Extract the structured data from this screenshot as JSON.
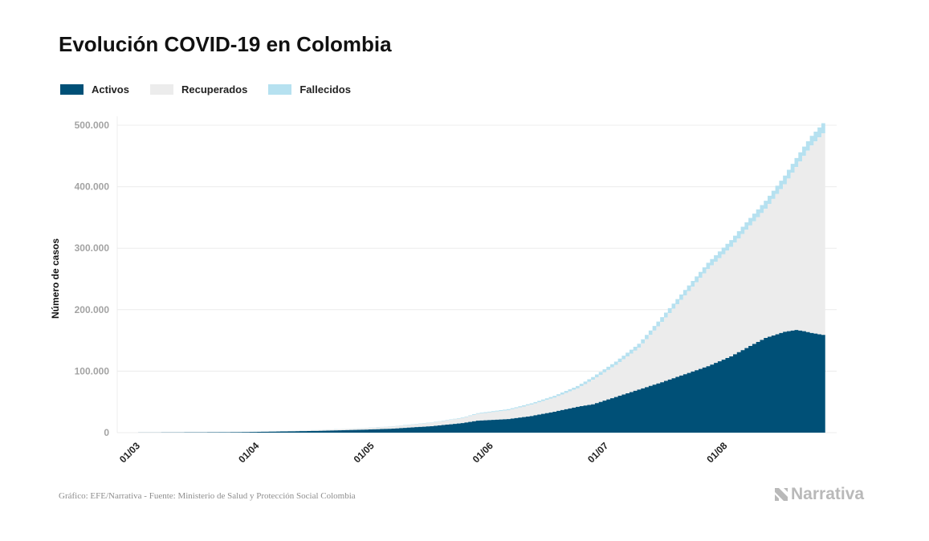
{
  "chart_data": {
    "type": "area",
    "title": "Evolución COVID-19 en Colombia",
    "ylabel": "Número de casos",
    "xlabel": "",
    "ylim": [
      0,
      500000
    ],
    "yticks": [
      0,
      100000,
      200000,
      300000,
      400000,
      500000
    ],
    "ytick_labels": [
      "0",
      "100.000",
      "200.000",
      "300.000",
      "400.000",
      "500.000"
    ],
    "xticks": [
      "01/03",
      "01/04",
      "01/05",
      "01/06",
      "01/07",
      "01/08"
    ],
    "xtick_days": [
      0,
      31,
      61,
      92,
      122,
      153
    ],
    "grid": true,
    "legend_position": "top-left",
    "stacked": true,
    "series": [
      {
        "name": "Activos",
        "color": "#005077",
        "points": [
          [
            0,
            0
          ],
          [
            30,
            800
          ],
          [
            40,
            1800
          ],
          [
            50,
            2800
          ],
          [
            61,
            4500
          ],
          [
            70,
            6500
          ],
          [
            80,
            10500
          ],
          [
            88,
            15500
          ],
          [
            92,
            19500
          ],
          [
            100,
            22000
          ],
          [
            106,
            27000
          ],
          [
            112,
            34000
          ],
          [
            118,
            42000
          ],
          [
            122,
            46000
          ],
          [
            128,
            58000
          ],
          [
            134,
            70000
          ],
          [
            140,
            82000
          ],
          [
            146,
            95000
          ],
          [
            152,
            108000
          ],
          [
            158,
            124000
          ],
          [
            163,
            141000
          ],
          [
            167,
            154000
          ],
          [
            172,
            164000
          ],
          [
            175,
            167000
          ],
          [
            177,
            165000
          ],
          [
            179,
            162000
          ],
          [
            182,
            159000
          ]
        ]
      },
      {
        "name": "Recuperados",
        "color": "#ececec",
        "points": [
          [
            0,
            0
          ],
          [
            30,
            40
          ],
          [
            40,
            300
          ],
          [
            50,
            1300
          ],
          [
            61,
            2200
          ],
          [
            70,
            3500
          ],
          [
            80,
            5500
          ],
          [
            88,
            8000
          ],
          [
            92,
            11000
          ],
          [
            100,
            14500
          ],
          [
            106,
            18500
          ],
          [
            112,
            23000
          ],
          [
            118,
            30000
          ],
          [
            122,
            40000
          ],
          [
            128,
            52000
          ],
          [
            134,
            68000
          ],
          [
            140,
            98000
          ],
          [
            146,
            128000
          ],
          [
            152,
            158000
          ],
          [
            158,
            178000
          ],
          [
            163,
            196000
          ],
          [
            167,
            210000
          ],
          [
            172,
            240000
          ],
          [
            175,
            265000
          ],
          [
            177,
            285000
          ],
          [
            179,
            305000
          ],
          [
            182,
            328000
          ]
        ]
      },
      {
        "name": "Fallecidos",
        "color": "#b6e1f0",
        "points": [
          [
            0,
            0
          ],
          [
            30,
            60
          ],
          [
            40,
            120
          ],
          [
            50,
            180
          ],
          [
            61,
            300
          ],
          [
            70,
            450
          ],
          [
            80,
            700
          ],
          [
            88,
            950
          ],
          [
            92,
            1100
          ],
          [
            100,
            1700
          ],
          [
            106,
            2200
          ],
          [
            112,
            2900
          ],
          [
            118,
            3800
          ],
          [
            122,
            4400
          ],
          [
            128,
            5500
          ],
          [
            134,
            6600
          ],
          [
            140,
            7800
          ],
          [
            146,
            9000
          ],
          [
            152,
            10200
          ],
          [
            158,
            11200
          ],
          [
            163,
            12200
          ],
          [
            167,
            13100
          ],
          [
            172,
            14000
          ],
          [
            175,
            14700
          ],
          [
            177,
            15200
          ],
          [
            179,
            15700
          ],
          [
            182,
            16200
          ]
        ]
      }
    ]
  },
  "source": "Gráfico: EFE/Narrativa - Fuente: Ministerio de Salud y Protección Social Colombia",
  "logo_text": "Narrativa"
}
